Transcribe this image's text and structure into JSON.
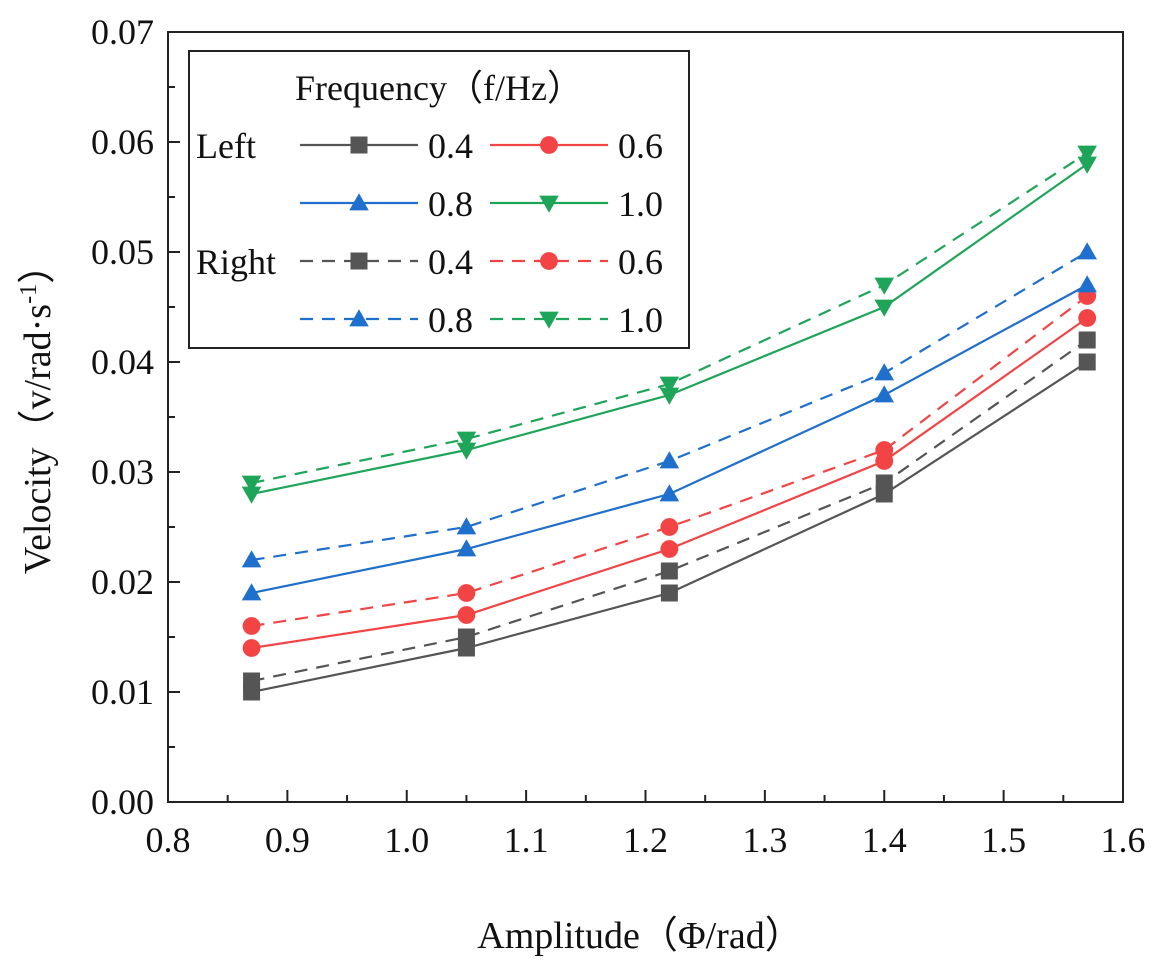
{
  "chart_data": {
    "type": "line",
    "title": "",
    "xlabel": "Amplitude（Φ/rad）",
    "ylabel_main": "Velocity（v/rad·s",
    "ylabel_sup": "-1",
    "ylabel_end": "）",
    "xlim": [
      0.8,
      1.6
    ],
    "ylim": [
      0.0,
      0.07
    ],
    "xticks": [
      0.8,
      0.9,
      1.0,
      1.1,
      1.2,
      1.3,
      1.4,
      1.5,
      1.6
    ],
    "xtick_labels": [
      "0.8",
      "0.9",
      "1.0",
      "1.1",
      "1.2",
      "1.3",
      "1.4",
      "1.5",
      "1.6"
    ],
    "yticks": [
      0.0,
      0.01,
      0.02,
      0.03,
      0.04,
      0.05,
      0.06,
      0.07
    ],
    "ytick_labels": [
      "0.00",
      "0.01",
      "0.02",
      "0.03",
      "0.04",
      "0.05",
      "0.06",
      "0.07"
    ],
    "x": [
      0.87,
      1.05,
      1.22,
      1.4,
      1.57
    ],
    "grid": false,
    "legend": {
      "placement": "top-left",
      "title": "Frequency（f/Hz）",
      "group_left": "Left",
      "group_right": "Right"
    },
    "series": [
      {
        "name": "0.4",
        "group": "Left",
        "color": "#555555",
        "marker": "square",
        "dash": "solid",
        "values": [
          0.01,
          0.014,
          0.019,
          0.028,
          0.04
        ]
      },
      {
        "name": "0.6",
        "group": "Left",
        "color": "#f24444",
        "marker": "circle",
        "dash": "solid",
        "values": [
          0.014,
          0.017,
          0.023,
          0.031,
          0.044
        ]
      },
      {
        "name": "0.8",
        "group": "Left",
        "color": "#1f6fcc",
        "marker": "triangle-up",
        "dash": "solid",
        "values": [
          0.019,
          0.023,
          0.028,
          0.037,
          0.047
        ]
      },
      {
        "name": "1.0",
        "group": "Left",
        "color": "#1fa55a",
        "marker": "triangle-down",
        "dash": "solid",
        "values": [
          0.028,
          0.032,
          0.037,
          0.045,
          0.058
        ]
      },
      {
        "name": "0.4",
        "group": "Right",
        "color": "#555555",
        "marker": "square",
        "dash": "dashed",
        "values": [
          0.011,
          0.015,
          0.021,
          0.029,
          0.042
        ]
      },
      {
        "name": "0.6",
        "group": "Right",
        "color": "#f24444",
        "marker": "circle",
        "dash": "dashed",
        "values": [
          0.016,
          0.019,
          0.025,
          0.032,
          0.046
        ]
      },
      {
        "name": "0.8",
        "group": "Right",
        "color": "#1f6fcc",
        "marker": "triangle-up",
        "dash": "dashed",
        "values": [
          0.022,
          0.025,
          0.031,
          0.039,
          0.05
        ]
      },
      {
        "name": "1.0",
        "group": "Right",
        "color": "#1fa55a",
        "marker": "triangle-down",
        "dash": "dashed",
        "values": [
          0.029,
          0.033,
          0.038,
          0.047,
          0.059
        ]
      }
    ]
  }
}
